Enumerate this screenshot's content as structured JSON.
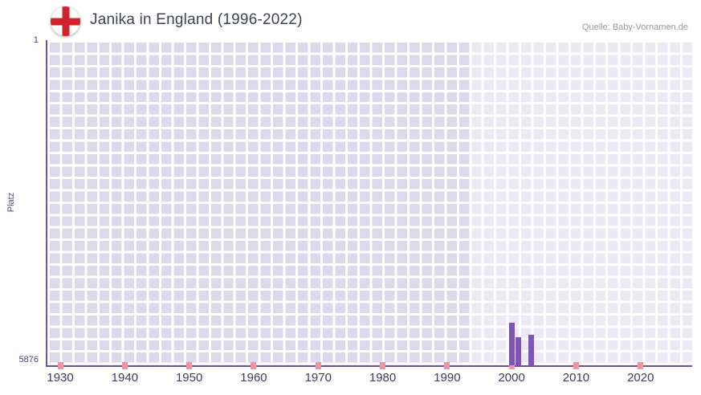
{
  "header": {
    "title": "Janika in England (1996-2022)",
    "source": "Quelle: Baby-Vornamen.de",
    "flag_icon": "england-st-george-cross-flag"
  },
  "chart_data": {
    "type": "bar",
    "title": "Janika in England (1996-2022)",
    "xlabel": "",
    "ylabel": "Platz",
    "y_ticks": [
      "1",
      "5876"
    ],
    "y_domain_top": 1,
    "y_domain_bottom": 5876,
    "x_domain": [
      1928,
      2028
    ],
    "x_ticks": [
      1930,
      1940,
      1950,
      1960,
      1970,
      1980,
      1990,
      2000,
      2010,
      2020
    ],
    "highlight_range": [
      1993.5,
      2028
    ],
    "bars": [
      {
        "year": 2000,
        "platz": 5100
      },
      {
        "year": 2001,
        "platz": 5370
      },
      {
        "year": 2003,
        "platz": 5330
      }
    ],
    "bar_width_years": 0.85,
    "grid": true,
    "legend": "none",
    "colors": {
      "bar": "#7d55b2",
      "axis": "#6e51a1",
      "grid_background": "#ded8ec",
      "grid_line": "#ffffff",
      "highlight_overlay": "rgba(255,255,255,0.45)",
      "x_tick_mark": "#ee93a0",
      "title_text": "#3d4350",
      "source_text": "#999999",
      "axis_label_text": "#4c4470"
    }
  }
}
